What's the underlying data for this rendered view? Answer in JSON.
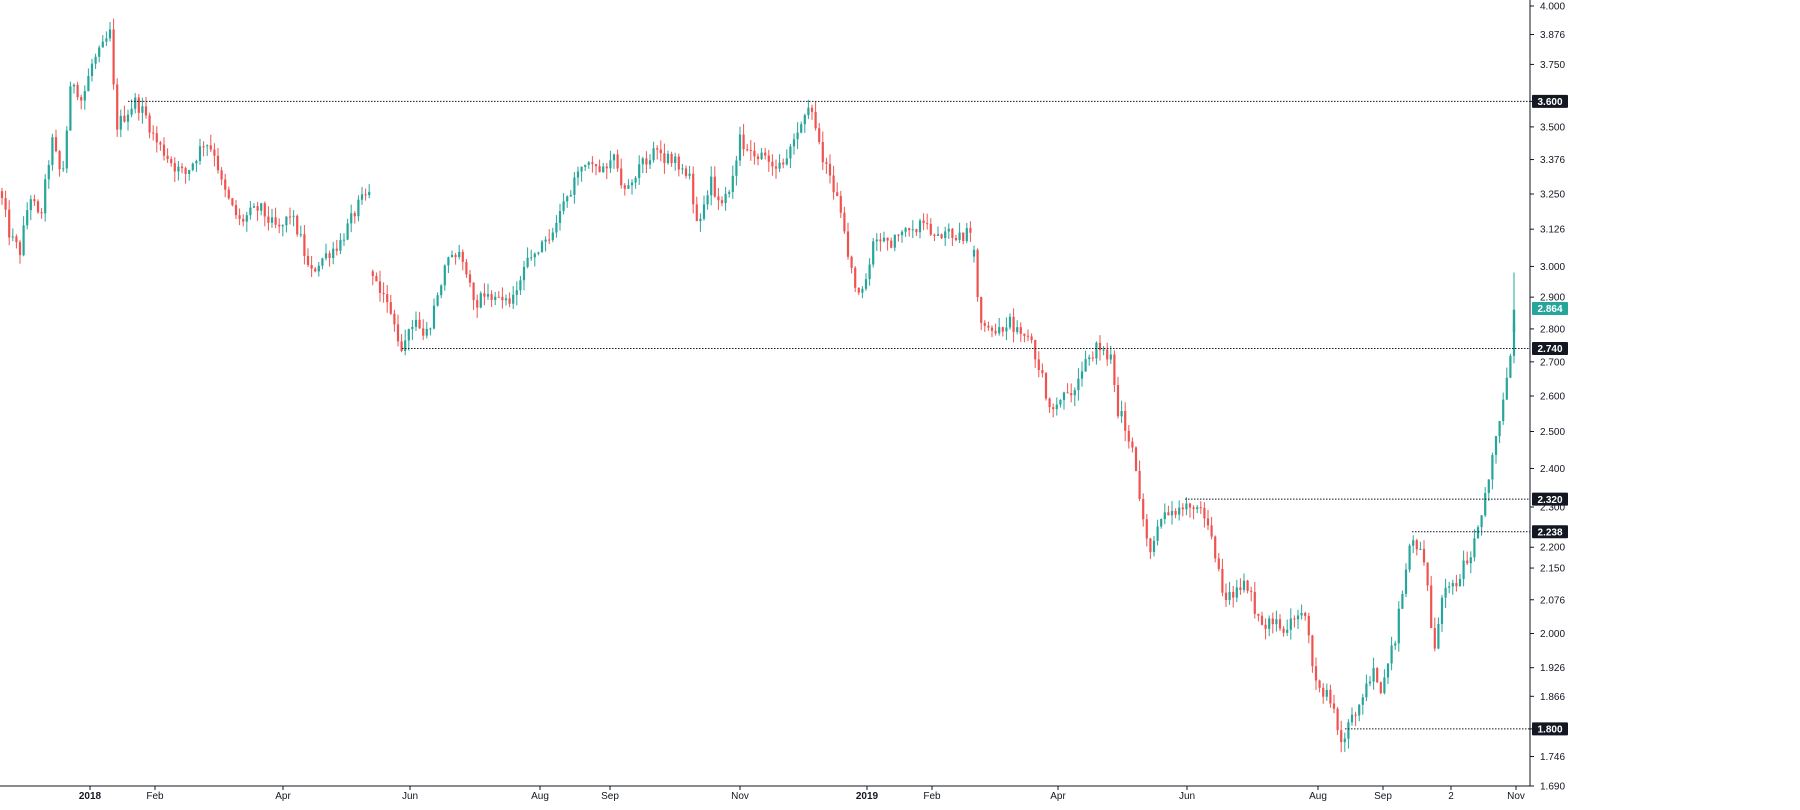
{
  "chart_data": {
    "type": "candlestick",
    "title": "",
    "xlabel": "",
    "ylabel": "",
    "ylim": [
      1.69,
      4.0
    ],
    "grid": false,
    "colors": {
      "up": "#26a69a",
      "down": "#ef5350",
      "hline": "#131722",
      "axis": "#131722",
      "text": "#131722"
    },
    "y_axis": {
      "position": "right",
      "scale": "log",
      "ticks": [
        "4.000",
        "3.876",
        "3.750",
        "3.600",
        "3.500",
        "3.376",
        "3.250",
        "3.126",
        "3.000",
        "2.900",
        "2.800",
        "2.700",
        "2.600",
        "2.500",
        "2.400",
        "2.300",
        "2.200",
        "2.150",
        "2.076",
        "2.000",
        "1.926",
        "1.866",
        "1.800",
        "1.746",
        "1.690"
      ]
    },
    "x_axis": {
      "labels": [
        {
          "text": "2018",
          "bold": true
        },
        {
          "text": "Feb",
          "bold": false
        },
        {
          "text": "Apr",
          "bold": false
        },
        {
          "text": "Jun",
          "bold": false
        },
        {
          "text": "Aug",
          "bold": false
        },
        {
          "text": "Sep",
          "bold": false
        },
        {
          "text": "Nov",
          "bold": false
        },
        {
          "text": "2019",
          "bold": true
        },
        {
          "text": "Feb",
          "bold": false
        },
        {
          "text": "Apr",
          "bold": false
        },
        {
          "text": "Jun",
          "bold": false
        },
        {
          "text": "Aug",
          "bold": false
        },
        {
          "text": "Sep",
          "bold": false
        },
        {
          "text": "2",
          "bold": false
        },
        {
          "text": "Nov",
          "bold": false
        }
      ]
    },
    "horizontal_levels": [
      {
        "value": 3.6,
        "label": "3.600",
        "from_label": "Feb",
        "style": "dotted"
      },
      {
        "value": 2.74,
        "label": "2.740",
        "from_label": "Jun",
        "style": "dotted"
      },
      {
        "value": 2.32,
        "label": "2.320",
        "from_label": "Jun",
        "style": "dotted"
      },
      {
        "value": 2.238,
        "label": "2.238",
        "from_label": "Sep",
        "style": "dotted"
      },
      {
        "value": 1.8,
        "label": "1.800",
        "from_label": "Aug",
        "style": "dotted"
      }
    ],
    "last_price": {
      "value": 2.864,
      "label": "2.864"
    },
    "price_path": [
      [
        0,
        3.26
      ],
      [
        10,
        3.1
      ],
      [
        20,
        3.05
      ],
      [
        30,
        3.25
      ],
      [
        40,
        3.15
      ],
      [
        52,
        3.45
      ],
      [
        62,
        3.3
      ],
      [
        72,
        3.7
      ],
      [
        82,
        3.6
      ],
      [
        92,
        3.75
      ],
      [
        100,
        3.8
      ],
      [
        110,
        3.88
      ],
      [
        116,
        3.5
      ],
      [
        126,
        3.55
      ],
      [
        135,
        3.6
      ],
      [
        145,
        3.55
      ],
      [
        155,
        3.45
      ],
      [
        165,
        3.4
      ],
      [
        175,
        3.35
      ],
      [
        185,
        3.32
      ],
      [
        195,
        3.38
      ],
      [
        205,
        3.45
      ],
      [
        215,
        3.4
      ],
      [
        222,
        3.28
      ],
      [
        232,
        3.2
      ],
      [
        240,
        3.15
      ],
      [
        250,
        3.18
      ],
      [
        260,
        3.2
      ],
      [
        270,
        3.15
      ],
      [
        280,
        3.12
      ],
      [
        290,
        3.18
      ],
      [
        300,
        3.1
      ],
      [
        310,
        2.97
      ],
      [
        320,
        3.02
      ],
      [
        330,
        3.05
      ],
      [
        340,
        3.08
      ],
      [
        350,
        3.15
      ],
      [
        360,
        3.22
      ],
      [
        370,
        3.25
      ],
      [
        373,
        2.97
      ],
      [
        382,
        2.92
      ],
      [
        390,
        2.85
      ],
      [
        400,
        2.74
      ],
      [
        408,
        2.8
      ],
      [
        418,
        2.82
      ],
      [
        428,
        2.78
      ],
      [
        436,
        2.9
      ],
      [
        446,
        3.0
      ],
      [
        456,
        3.05
      ],
      [
        466,
        3.0
      ],
      [
        476,
        2.88
      ],
      [
        486,
        2.92
      ],
      [
        496,
        2.9
      ],
      [
        506,
        2.88
      ],
      [
        516,
        2.92
      ],
      [
        526,
        3.0
      ],
      [
        536,
        3.05
      ],
      [
        546,
        3.08
      ],
      [
        556,
        3.15
      ],
      [
        566,
        3.22
      ],
      [
        576,
        3.3
      ],
      [
        586,
        3.38
      ],
      [
        596,
        3.35
      ],
      [
        606,
        3.36
      ],
      [
        616,
        3.38
      ],
      [
        622,
        3.25
      ],
      [
        632,
        3.3
      ],
      [
        642,
        3.36
      ],
      [
        652,
        3.4
      ],
      [
        662,
        3.39
      ],
      [
        672,
        3.38
      ],
      [
        682,
        3.34
      ],
      [
        690,
        3.3
      ],
      [
        697,
        3.15
      ],
      [
        705,
        3.2
      ],
      [
        712,
        3.3
      ],
      [
        720,
        3.2
      ],
      [
        730,
        3.25
      ],
      [
        740,
        3.45
      ],
      [
        750,
        3.4
      ],
      [
        760,
        3.4
      ],
      [
        770,
        3.38
      ],
      [
        780,
        3.35
      ],
      [
        790,
        3.4
      ],
      [
        800,
        3.5
      ],
      [
        807,
        3.6
      ],
      [
        812,
        3.55
      ],
      [
        818,
        3.45
      ],
      [
        826,
        3.35
      ],
      [
        834,
        3.25
      ],
      [
        842,
        3.2
      ],
      [
        850,
        3.0
      ],
      [
        858,
        2.9
      ],
      [
        866,
        2.95
      ],
      [
        874,
        3.1
      ],
      [
        882,
        3.1
      ],
      [
        890,
        3.08
      ],
      [
        900,
        3.1
      ],
      [
        910,
        3.12
      ],
      [
        920,
        3.14
      ],
      [
        930,
        3.13
      ],
      [
        940,
        3.12
      ],
      [
        950,
        3.11
      ],
      [
        960,
        3.1
      ],
      [
        972,
        3.12
      ],
      [
        976,
        2.95
      ],
      [
        982,
        2.8
      ],
      [
        990,
        2.78
      ],
      [
        1000,
        2.8
      ],
      [
        1010,
        2.82
      ],
      [
        1020,
        2.78
      ],
      [
        1030,
        2.76
      ],
      [
        1038,
        2.7
      ],
      [
        1045,
        2.62
      ],
      [
        1052,
        2.56
      ],
      [
        1060,
        2.6
      ],
      [
        1068,
        2.62
      ],
      [
        1076,
        2.62
      ],
      [
        1086,
        2.7
      ],
      [
        1096,
        2.74
      ],
      [
        1104,
        2.72
      ],
      [
        1112,
        2.7
      ],
      [
        1118,
        2.56
      ],
      [
        1125,
        2.52
      ],
      [
        1132,
        2.46
      ],
      [
        1138,
        2.36
      ],
      [
        1144,
        2.25
      ],
      [
        1150,
        2.18
      ],
      [
        1158,
        2.24
      ],
      [
        1166,
        2.3
      ],
      [
        1176,
        2.28
      ],
      [
        1186,
        2.3
      ],
      [
        1196,
        2.3
      ],
      [
        1204,
        2.28
      ],
      [
        1212,
        2.22
      ],
      [
        1220,
        2.12
      ],
      [
        1228,
        2.08
      ],
      [
        1236,
        2.1
      ],
      [
        1246,
        2.12
      ],
      [
        1256,
        2.05
      ],
      [
        1266,
        2.02
      ],
      [
        1276,
        2.04
      ],
      [
        1286,
        2.0
      ],
      [
        1296,
        2.04
      ],
      [
        1306,
        2.05
      ],
      [
        1312,
        1.92
      ],
      [
        1320,
        1.88
      ],
      [
        1330,
        1.86
      ],
      [
        1340,
        1.78
      ],
      [
        1348,
        1.8
      ],
      [
        1356,
        1.84
      ],
      [
        1364,
        1.88
      ],
      [
        1372,
        1.92
      ],
      [
        1380,
        1.88
      ],
      [
        1388,
        1.93
      ],
      [
        1396,
        2.0
      ],
      [
        1404,
        2.12
      ],
      [
        1412,
        2.22
      ],
      [
        1420,
        2.2
      ],
      [
        1428,
        2.1
      ],
      [
        1434,
        1.95
      ],
      [
        1440,
        2.05
      ],
      [
        1448,
        2.12
      ],
      [
        1456,
        2.1
      ],
      [
        1462,
        2.15
      ],
      [
        1470,
        2.18
      ],
      [
        1478,
        2.24
      ],
      [
        1486,
        2.36
      ],
      [
        1494,
        2.44
      ],
      [
        1500,
        2.55
      ],
      [
        1506,
        2.66
      ],
      [
        1512,
        2.74
      ],
      [
        1516,
        2.86
      ]
    ]
  }
}
